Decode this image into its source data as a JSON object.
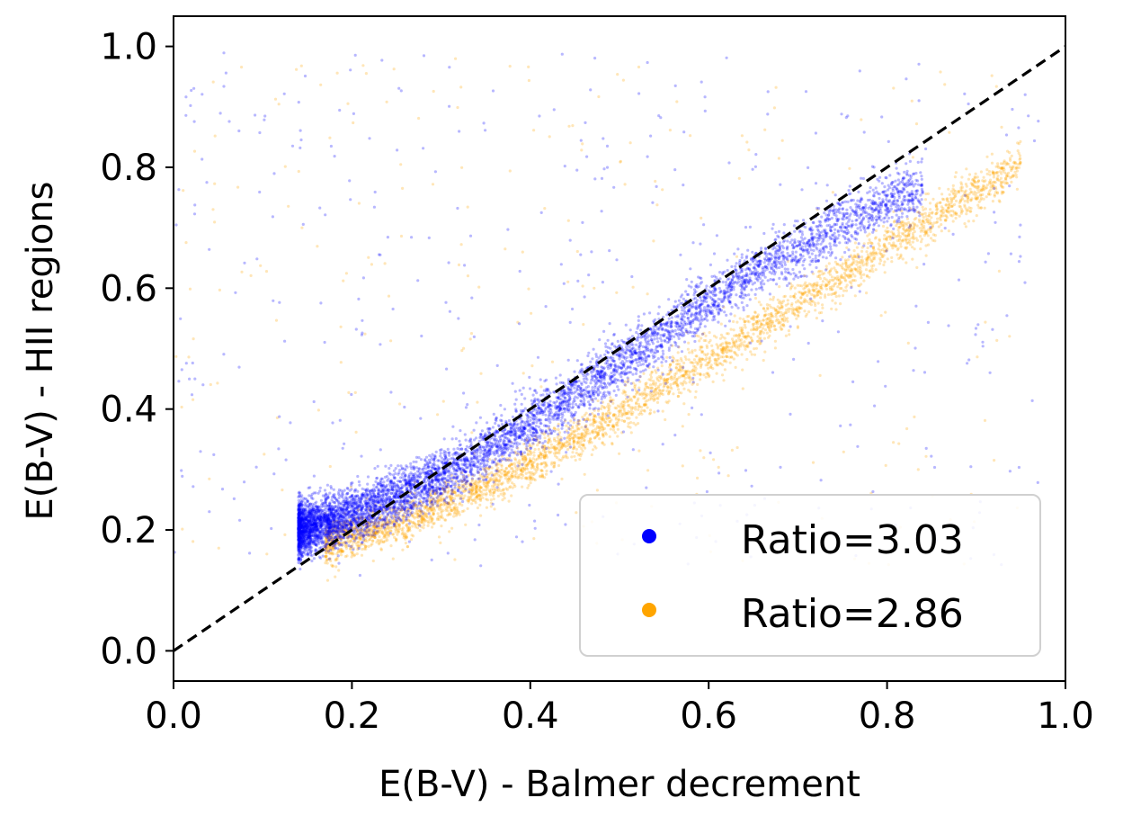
{
  "chart_data": {
    "type": "scatter",
    "xlabel": "E(B-V) - Balmer decrement",
    "ylabel": "E(B-V) - HII regions",
    "xlim": [
      0.0,
      1.0
    ],
    "ylim": [
      -0.05,
      1.05
    ],
    "x_ticks": [
      "0.0",
      "0.2",
      "0.4",
      "0.6",
      "0.8",
      "1.0"
    ],
    "y_ticks": [
      "0.0",
      "0.2",
      "0.4",
      "0.6",
      "0.8",
      "1.0"
    ],
    "x_tick_values": [
      0.0,
      0.2,
      0.4,
      0.6,
      0.8,
      1.0
    ],
    "y_tick_values": [
      0.0,
      0.2,
      0.4,
      0.6,
      0.8,
      1.0
    ],
    "grid": false,
    "legend_position": "lower-right",
    "reference_line": {
      "style": "dashed",
      "color": "#000000",
      "from": [
        0.0,
        0.0
      ],
      "to": [
        1.0,
        1.0
      ]
    },
    "series": [
      {
        "name": "Ratio=3.03",
        "color": "#0000ff",
        "trend": {
          "x": [
            0.15,
            0.2,
            0.25,
            0.3,
            0.35,
            0.4,
            0.45,
            0.5,
            0.55,
            0.6,
            0.65,
            0.7,
            0.75,
            0.8
          ],
          "y": [
            0.205,
            0.225,
            0.255,
            0.29,
            0.33,
            0.375,
            0.425,
            0.475,
            0.525,
            0.575,
            0.625,
            0.665,
            0.705,
            0.74
          ]
        }
      },
      {
        "name": "Ratio=2.86",
        "color": "#ffa500",
        "trend": {
          "x": [
            0.2,
            0.25,
            0.3,
            0.35,
            0.4,
            0.45,
            0.5,
            0.55,
            0.6,
            0.65,
            0.7,
            0.75,
            0.8,
            0.85,
            0.9
          ],
          "y": [
            0.19,
            0.21,
            0.24,
            0.27,
            0.31,
            0.35,
            0.395,
            0.44,
            0.485,
            0.53,
            0.575,
            0.62,
            0.67,
            0.715,
            0.76
          ]
        }
      }
    ]
  }
}
